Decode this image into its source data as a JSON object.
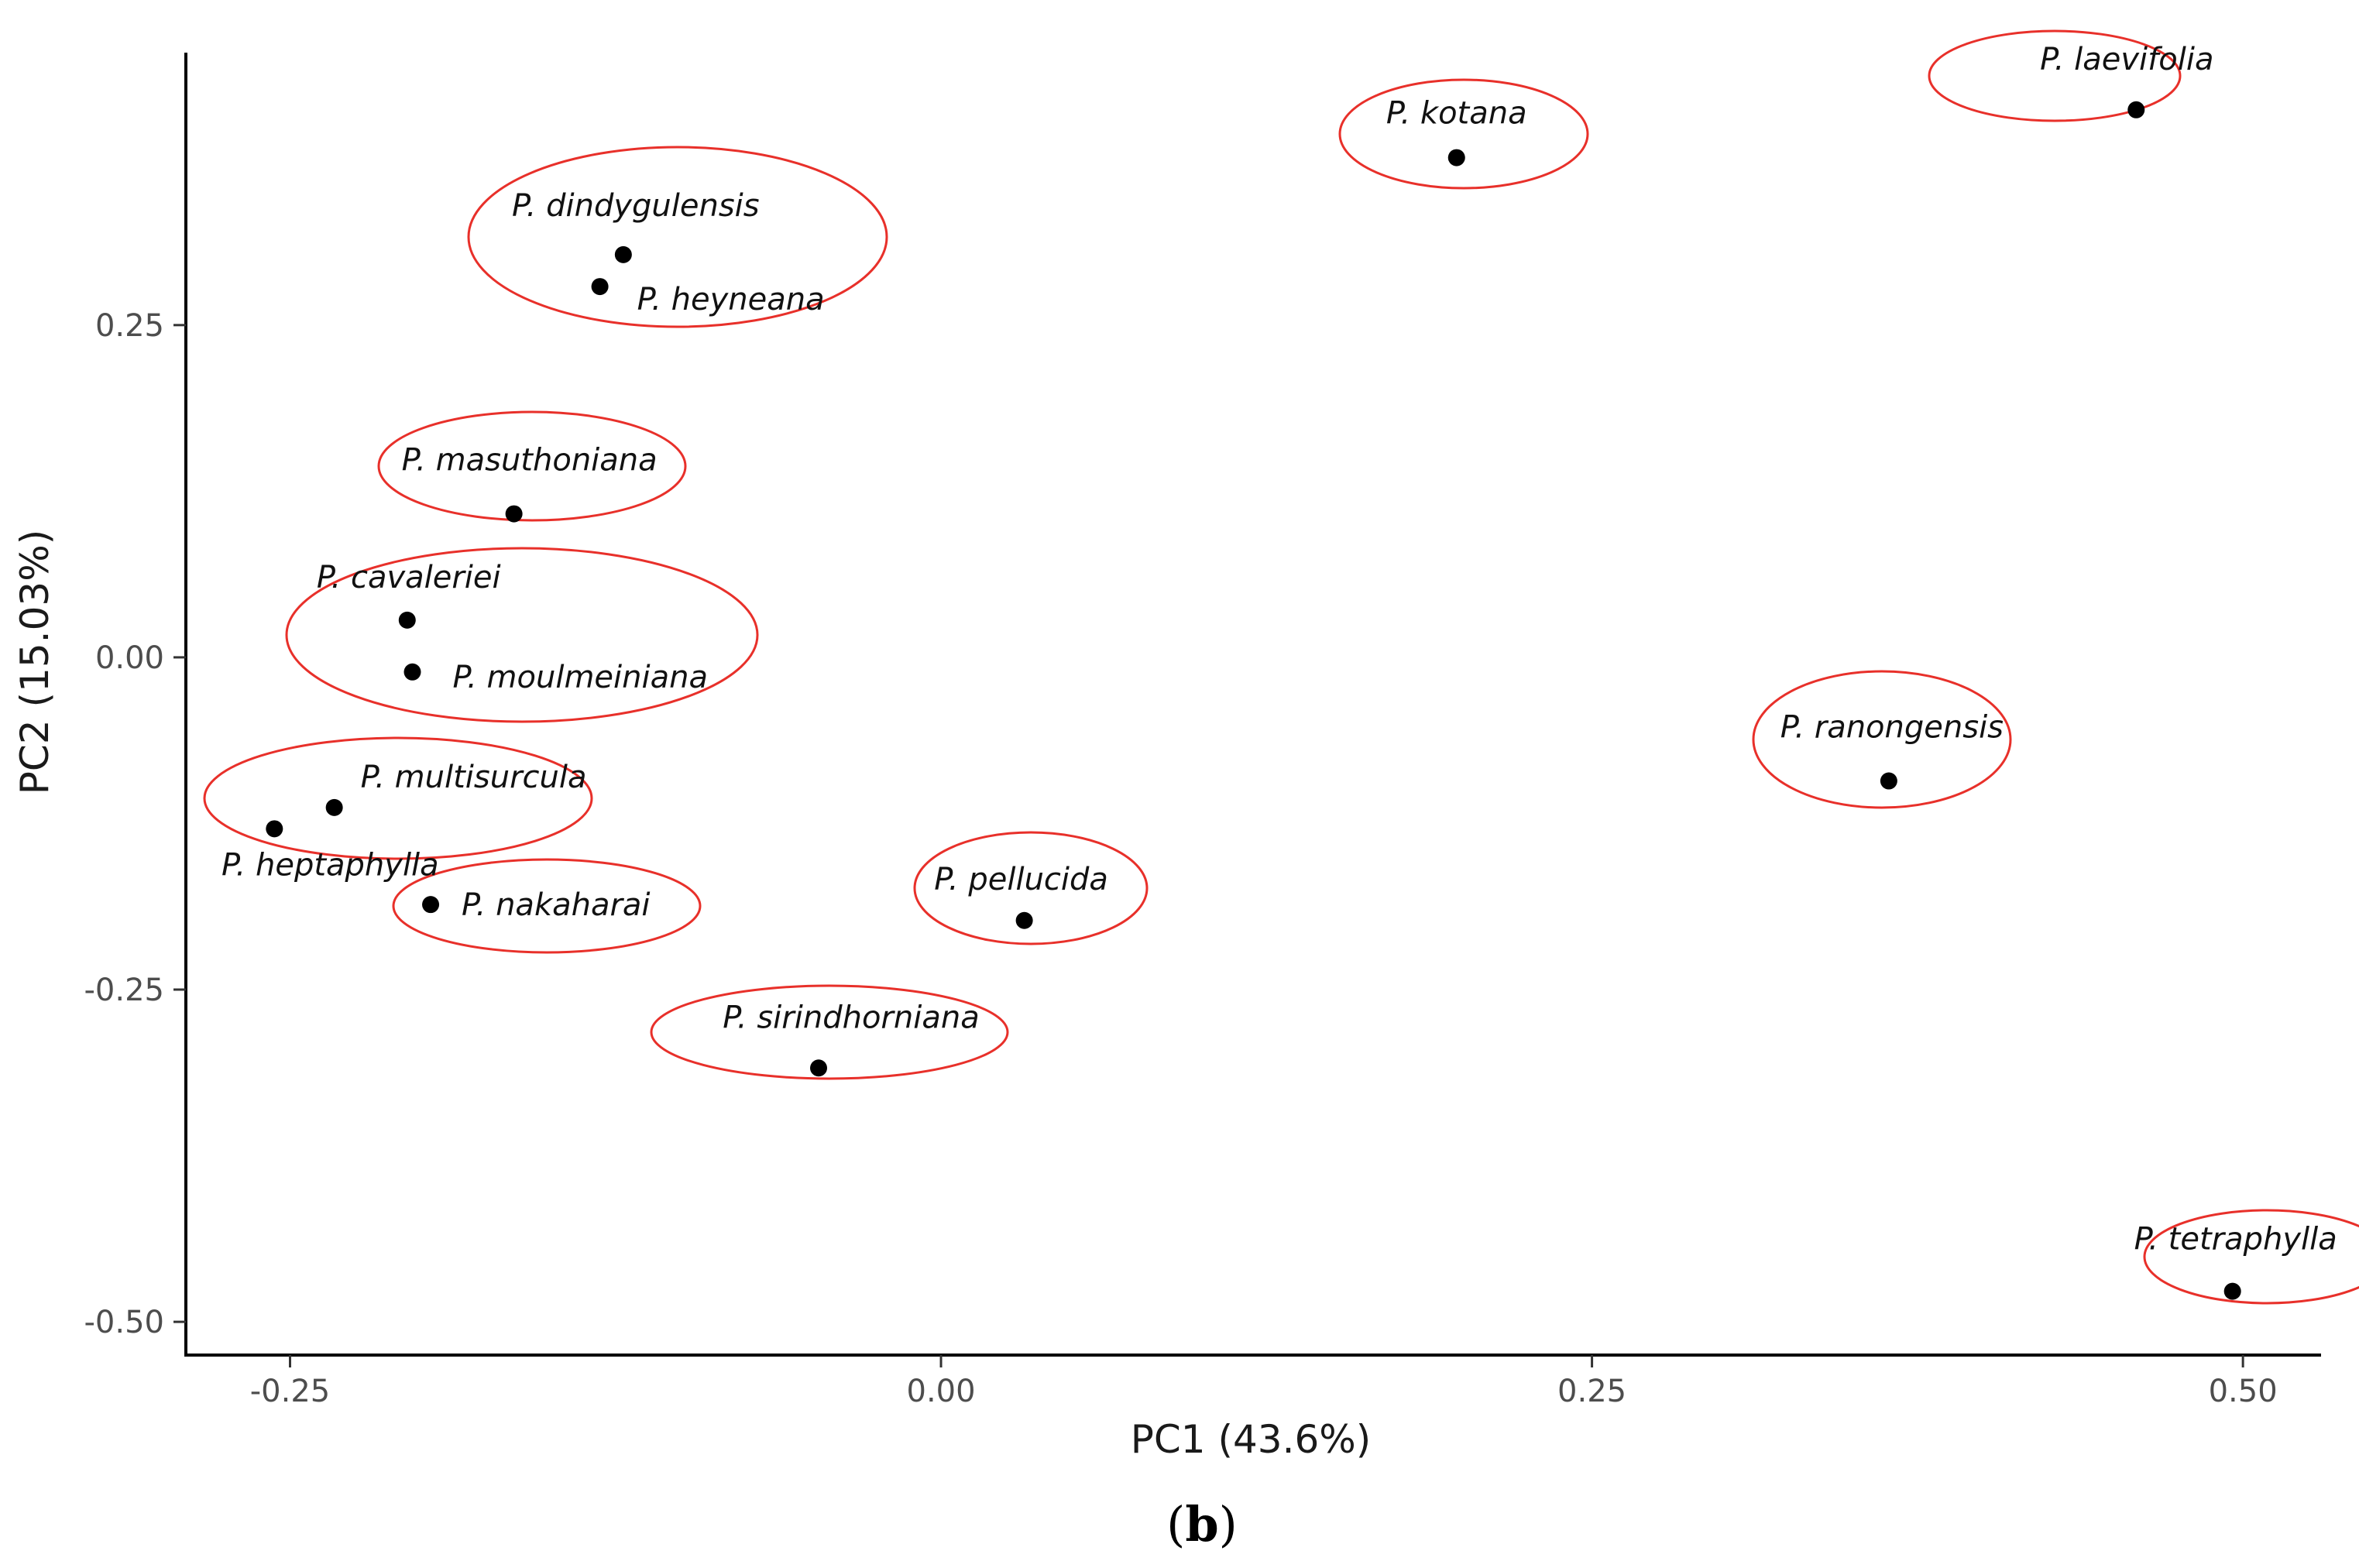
{
  "chart_data": {
    "type": "scatter",
    "xlabel": "PC1 (43.6%)",
    "ylabel": "PC2 (15.03%)",
    "xlim": [
      -0.29,
      0.53
    ],
    "ylim": [
      -0.525,
      0.455
    ],
    "xticks": [
      -0.25,
      0.0,
      0.25,
      0.5
    ],
    "xtick_labels": [
      "-0.25",
      "0.00",
      "0.25",
      "0.50"
    ],
    "yticks": [
      -0.5,
      -0.25,
      0.0,
      0.25
    ],
    "ytick_labels": [
      "-0.50",
      "-0.25",
      "0.00",
      "0.25"
    ],
    "grid": false,
    "point_color": "#000000",
    "ellipse_color": "#e8302a",
    "points": [
      {
        "label": "P. laevifolia",
        "x": 0.459,
        "y": 0.412
      },
      {
        "label": "P. kotana",
        "x": 0.198,
        "y": 0.376
      },
      {
        "label": "P. dindygulensis",
        "x": -0.122,
        "y": 0.303
      },
      {
        "label": "P. heyneana",
        "x": -0.131,
        "y": 0.279
      },
      {
        "label": "P. masuthoniana",
        "x": -0.164,
        "y": 0.108
      },
      {
        "label": "P. cavaleriei",
        "x": -0.205,
        "y": 0.028
      },
      {
        "label": "P. moulmeiniana",
        "x": -0.203,
        "y": -0.011
      },
      {
        "label": "P. multisurcula",
        "x": -0.233,
        "y": -0.113
      },
      {
        "label": "P. heptaphylla",
        "x": -0.256,
        "y": -0.129
      },
      {
        "label": "P. nakaharai",
        "x": -0.196,
        "y": -0.186
      },
      {
        "label": "P. pellucida",
        "x": 0.032,
        "y": -0.198
      },
      {
        "label": "P. sirindhorniana",
        "x": -0.047,
        "y": -0.309
      },
      {
        "label": "P. ranongensis",
        "x": 0.364,
        "y": -0.093
      },
      {
        "label": "P. tetraphylla",
        "x": 0.496,
        "y": -0.477
      }
    ],
    "groups": [
      [
        "P. laevifolia"
      ],
      [
        "P. kotana"
      ],
      [
        "P. dindygulensis",
        "P. heyneana"
      ],
      [
        "P. masuthoniana"
      ],
      [
        "P. cavaleriei",
        "P. moulmeiniana"
      ],
      [
        "P. multisurcula",
        "P. heptaphylla"
      ],
      [
        "P. nakaharai"
      ],
      [
        "P. pellucida"
      ],
      [
        "P. sirindhorniana"
      ],
      [
        "P. ranongensis"
      ],
      [
        "P. tetraphylla"
      ]
    ]
  },
  "caption": {
    "open": "(",
    "letter": "b",
    "close": ")"
  }
}
